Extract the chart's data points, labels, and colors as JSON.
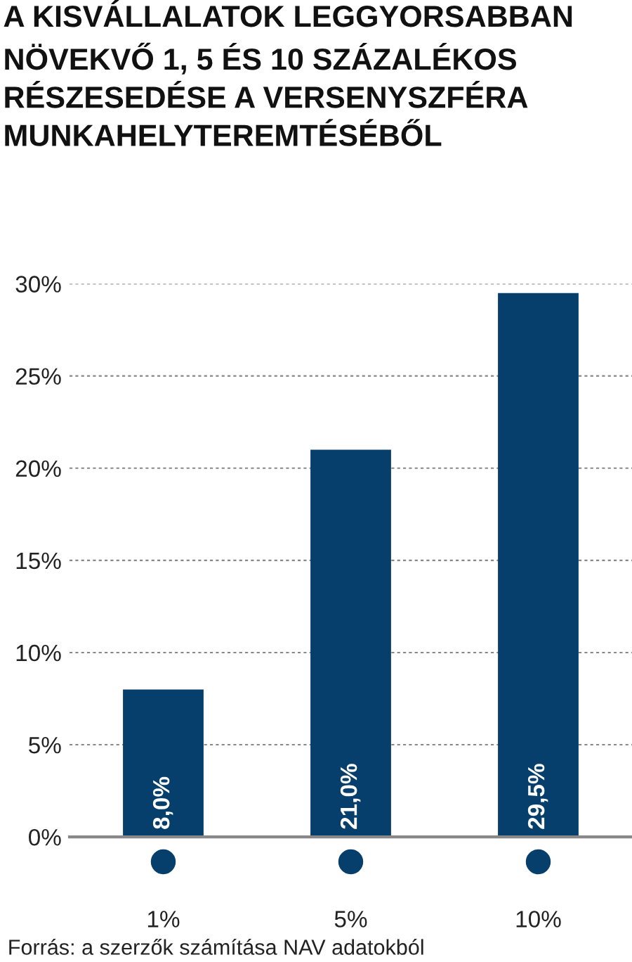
{
  "chart_data": {
    "type": "bar",
    "title": "A KISVÁLLALATOK LEGGYORSABBAN\nNÖVEKVŐ 1, 5 ÉS 10 SZÁZALÉKOS\nRÉSZESEDÉSE A VERSENYSZFÉRA\nMUNKAHELYTEREMTÉSÉBŐL",
    "categories": [
      "1%",
      "5%",
      "10%"
    ],
    "values": [
      8.0,
      21.0,
      29.5
    ],
    "value_labels": [
      "8,0%",
      "21,0%",
      "29,5%"
    ],
    "color": "#073f6c",
    "ylim": [
      0,
      30
    ],
    "yticks": [
      {
        "value": 0,
        "label": "0%"
      },
      {
        "value": 5,
        "label": "5%"
      },
      {
        "value": 10,
        "label": "10%"
      },
      {
        "value": 15,
        "label": "15%"
      },
      {
        "value": 20,
        "label": "20%"
      },
      {
        "value": 25,
        "label": "25%"
      },
      {
        "value": 30,
        "label": "30%"
      }
    ],
    "grid": "y",
    "annotations": [
      "Forrás: a szerzők számítása NAV adatokból"
    ]
  }
}
